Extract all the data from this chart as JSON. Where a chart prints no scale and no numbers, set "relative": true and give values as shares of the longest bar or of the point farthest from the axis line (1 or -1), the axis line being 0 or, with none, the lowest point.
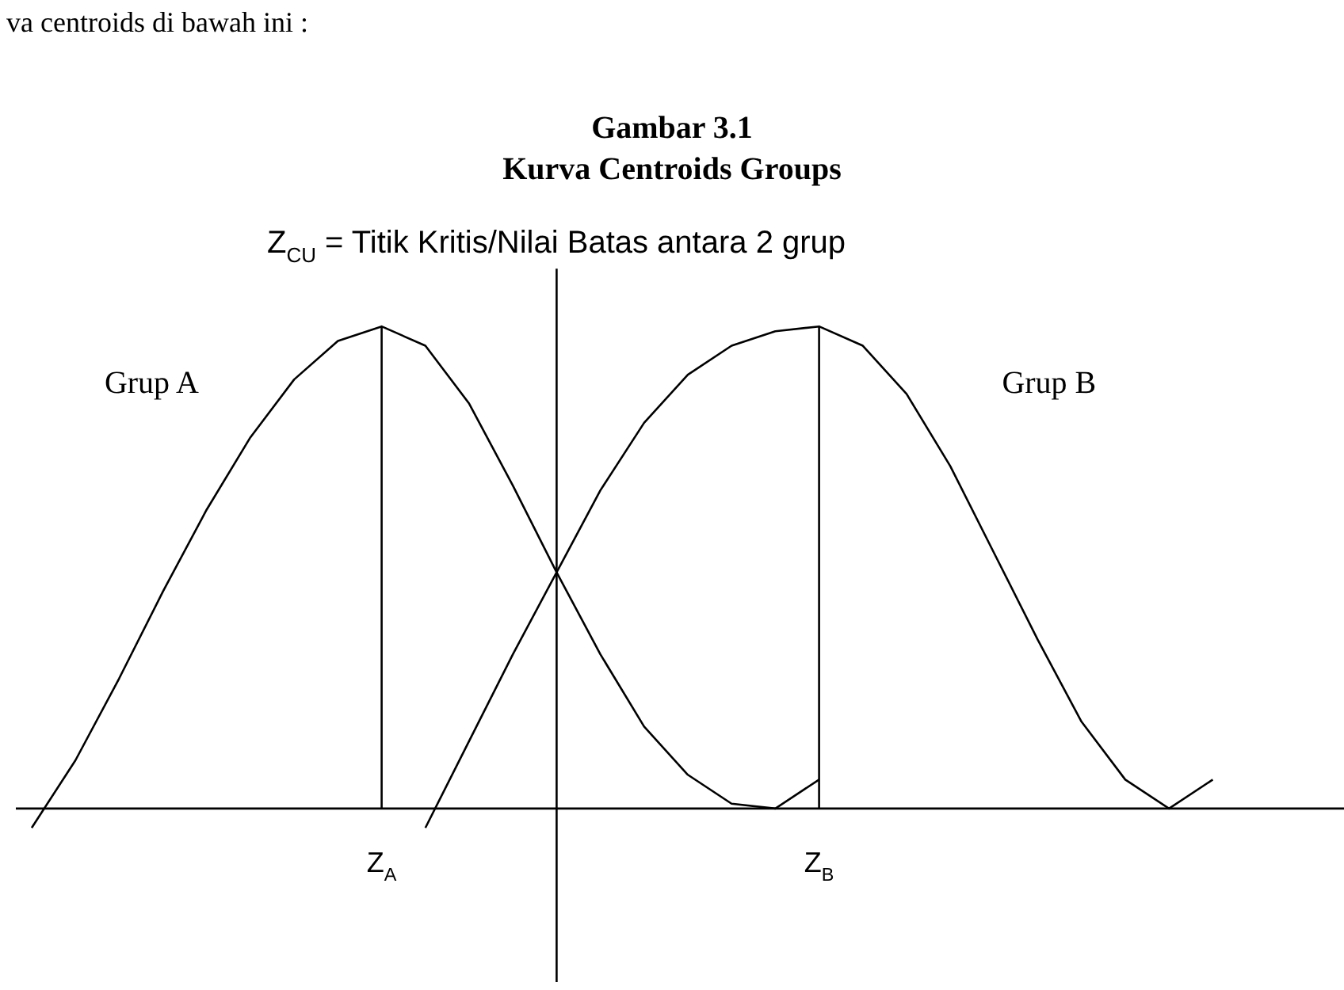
{
  "chart_data": {
    "type": "line",
    "title": "Gambar 3.1",
    "subtitle": "Kurva Centroids Groups",
    "relative": true,
    "legend": false,
    "marker": "none",
    "line_style": "solid",
    "annotations": [
      "va centroids di bawah ini :",
      "Z$_{CU}$ = Titik Kritis/Nilai Batas antara 2 grup"
    ],
    "categories": [
      null,
      null,
      null,
      null,
      null,
      null,
      null,
      null,
      "Z$_{A}$",
      null,
      null,
      null,
      null,
      null,
      null,
      null,
      null,
      null,
      "Z$_{B}$",
      null,
      null,
      null,
      null,
      null,
      null,
      null,
      null,
      null,
      null,
      null,
      null
    ],
    "grid": "x",
    "series": [
      {
        "name": "Grup A",
        "color": "#000000",
        "values": [
          -0.04,
          0.1,
          0.27,
          0.45,
          0.62,
          0.77,
          0.89,
          0.97,
          1,
          0.96,
          0.84,
          0.67,
          0.49,
          0.32,
          0.17,
          0.07,
          0.01,
          0,
          0.06,
          null,
          null,
          null,
          null,
          null,
          null,
          null,
          null,
          null,
          null,
          null,
          null
        ]
      },
      {
        "name": "Grup B",
        "color": "#000000",
        "values": [
          null,
          null,
          null,
          null,
          null,
          null,
          null,
          null,
          null,
          -0.04,
          0.14,
          0.32,
          0.49,
          0.66,
          0.8,
          0.9,
          0.96,
          0.99,
          1,
          0.96,
          0.86,
          0.71,
          0.53,
          0.35,
          0.18,
          0.06,
          0,
          0.06,
          null,
          null,
          null
        ]
      }
    ]
  }
}
